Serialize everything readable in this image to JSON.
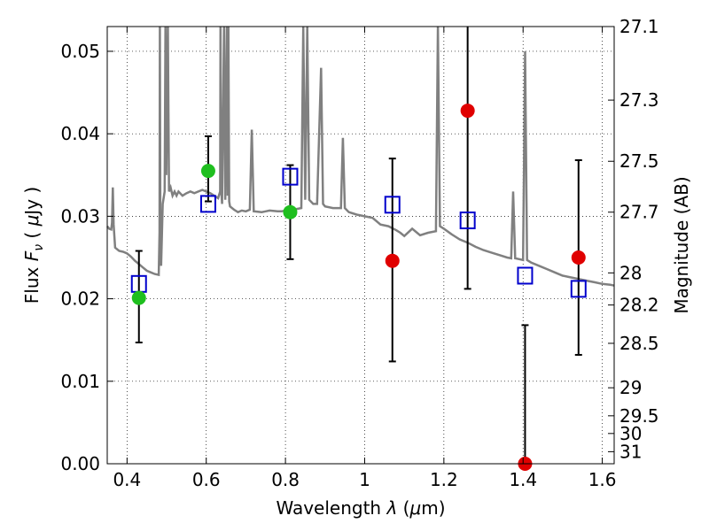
{
  "chart_data": {
    "type": "scatter",
    "xlabel_parts": [
      "Wavelength  ",
      "λ",
      " (",
      "μ",
      "m)"
    ],
    "ylabel_parts": [
      "Flux  ",
      "F",
      "ν",
      "  ( ",
      "μ",
      "Jy )"
    ],
    "y2label": "Magnitude (AB)",
    "xlim": [
      0.35,
      1.63
    ],
    "ylim": [
      0.0,
      0.053
    ],
    "x_ticks": [
      0.4,
      0.6,
      0.8,
      1.0,
      1.2,
      1.4,
      1.6
    ],
    "x_tick_labels": [
      "0.4",
      "0.6",
      "0.8",
      "1",
      "1.2",
      "1.4",
      "1.6"
    ],
    "y_ticks": [
      0.0,
      0.01,
      0.02,
      0.03,
      0.04,
      0.05
    ],
    "y_tick_labels": [
      "0.00",
      "0.01",
      "0.02",
      "0.03",
      "0.04",
      "0.05"
    ],
    "mag_ticks": [
      27.1,
      27.3,
      27.5,
      27.7,
      28,
      28.2,
      28.5,
      29,
      29.5,
      30,
      31
    ],
    "mag_tick_labels": [
      "27.1",
      "27.3",
      "27.5",
      "27.7",
      "28",
      "28.2",
      "28.5",
      "29",
      "29.5",
      "30",
      "31"
    ],
    "grid": true,
    "colors": {
      "model_line": "#808080",
      "model_flux": "#0000cc",
      "detected": "#1fbf1f",
      "low_snr": "#e00000",
      "errorbar": "#000000"
    },
    "series": [
      {
        "kind": "model_spectrum",
        "points": [
          [
            0.35,
            0.0288
          ],
          [
            0.355,
            0.0285
          ],
          [
            0.36,
            0.0284
          ],
          [
            0.362,
            0.0292
          ],
          [
            0.364,
            0.0335
          ],
          [
            0.366,
            0.029
          ],
          [
            0.37,
            0.0262
          ],
          [
            0.38,
            0.0258
          ],
          [
            0.39,
            0.0257
          ],
          [
            0.4,
            0.0255
          ],
          [
            0.41,
            0.0251
          ],
          [
            0.42,
            0.0246
          ],
          [
            0.43,
            0.0242
          ],
          [
            0.44,
            0.0238
          ],
          [
            0.45,
            0.0234
          ],
          [
            0.46,
            0.0232
          ],
          [
            0.47,
            0.023
          ],
          [
            0.48,
            0.0229
          ],
          [
            0.482,
            0.028
          ],
          [
            0.483,
            0.053
          ],
          [
            0.484,
            0.03
          ],
          [
            0.486,
            0.024
          ],
          [
            0.49,
            0.0315
          ],
          [
            0.495,
            0.033
          ],
          [
            0.497,
            0.053
          ],
          [
            0.499,
            0.035
          ],
          [
            0.503,
            0.053
          ],
          [
            0.506,
            0.033
          ],
          [
            0.51,
            0.0335
          ],
          [
            0.515,
            0.0325
          ],
          [
            0.52,
            0.033
          ],
          [
            0.525,
            0.0325
          ],
          [
            0.53,
            0.033
          ],
          [
            0.54,
            0.0325
          ],
          [
            0.55,
            0.0328
          ],
          [
            0.56,
            0.033
          ],
          [
            0.57,
            0.0328
          ],
          [
            0.58,
            0.033
          ],
          [
            0.59,
            0.0332
          ],
          [
            0.6,
            0.033
          ],
          [
            0.61,
            0.0328
          ],
          [
            0.62,
            0.0325
          ],
          [
            0.63,
            0.0322
          ],
          [
            0.635,
            0.033
          ],
          [
            0.636,
            0.053
          ],
          [
            0.638,
            0.033
          ],
          [
            0.64,
            0.0315
          ],
          [
            0.645,
            0.053
          ],
          [
            0.648,
            0.032
          ],
          [
            0.652,
            0.053
          ],
          [
            0.654,
            0.0325
          ],
          [
            0.656,
            0.053
          ],
          [
            0.658,
            0.0318
          ],
          [
            0.66,
            0.0312
          ],
          [
            0.67,
            0.0308
          ],
          [
            0.68,
            0.0305
          ],
          [
            0.69,
            0.0307
          ],
          [
            0.7,
            0.0306
          ],
          [
            0.71,
            0.0308
          ],
          [
            0.715,
            0.0405
          ],
          [
            0.72,
            0.0306
          ],
          [
            0.74,
            0.0305
          ],
          [
            0.75,
            0.0306
          ],
          [
            0.76,
            0.0307
          ],
          [
            0.78,
            0.0306
          ],
          [
            0.79,
            0.0306
          ],
          [
            0.8,
            0.0307
          ],
          [
            0.81,
            0.0308
          ],
          [
            0.82,
            0.0308
          ],
          [
            0.83,
            0.0309
          ],
          [
            0.84,
            0.031
          ],
          [
            0.845,
            0.053
          ],
          [
            0.85,
            0.032
          ],
          [
            0.855,
            0.053
          ],
          [
            0.86,
            0.032
          ],
          [
            0.87,
            0.0315
          ],
          [
            0.88,
            0.0315
          ],
          [
            0.89,
            0.048
          ],
          [
            0.895,
            0.0315
          ],
          [
            0.9,
            0.0312
          ],
          [
            0.92,
            0.031
          ],
          [
            0.94,
            0.031
          ],
          [
            0.945,
            0.0395
          ],
          [
            0.95,
            0.031
          ],
          [
            0.96,
            0.0305
          ],
          [
            0.98,
            0.0302
          ],
          [
            1.0,
            0.03
          ],
          [
            1.02,
            0.0298
          ],
          [
            1.04,
            0.029
          ],
          [
            1.06,
            0.0288
          ],
          [
            1.08,
            0.0283
          ],
          [
            1.09,
            0.028
          ],
          [
            1.1,
            0.0276
          ],
          [
            1.12,
            0.0285
          ],
          [
            1.14,
            0.0277
          ],
          [
            1.16,
            0.028
          ],
          [
            1.18,
            0.0282
          ],
          [
            1.185,
            0.053
          ],
          [
            1.19,
            0.0288
          ],
          [
            1.2,
            0.0285
          ],
          [
            1.22,
            0.0278
          ],
          [
            1.24,
            0.0272
          ],
          [
            1.26,
            0.0268
          ],
          [
            1.28,
            0.0263
          ],
          [
            1.3,
            0.0259
          ],
          [
            1.32,
            0.0256
          ],
          [
            1.34,
            0.0253
          ],
          [
            1.36,
            0.025
          ],
          [
            1.37,
            0.0249
          ],
          [
            1.375,
            0.033
          ],
          [
            1.38,
            0.0249
          ],
          [
            1.39,
            0.0248
          ],
          [
            1.4,
            0.0247
          ],
          [
            1.405,
            0.05
          ],
          [
            1.41,
            0.0247
          ],
          [
            1.42,
            0.0244
          ],
          [
            1.44,
            0.024
          ],
          [
            1.46,
            0.0236
          ],
          [
            1.48,
            0.0232
          ],
          [
            1.5,
            0.0228
          ],
          [
            1.52,
            0.0226
          ],
          [
            1.54,
            0.0224
          ],
          [
            1.56,
            0.0222
          ],
          [
            1.58,
            0.022
          ],
          [
            1.6,
            0.0218
          ],
          [
            1.62,
            0.0217
          ],
          [
            1.63,
            0.0216
          ]
        ]
      },
      {
        "kind": "model_band_flux",
        "points": [
          [
            0.43,
            0.0218
          ],
          [
            0.605,
            0.0315
          ],
          [
            0.812,
            0.0348
          ],
          [
            1.07,
            0.0314
          ],
          [
            1.26,
            0.0295
          ],
          [
            1.405,
            0.0228
          ],
          [
            1.54,
            0.0212
          ]
        ]
      },
      {
        "kind": "detected",
        "points": [
          [
            0.43,
            0.0201
          ],
          [
            0.605,
            0.0355
          ],
          [
            0.812,
            0.0305
          ]
        ]
      },
      {
        "kind": "low_snr",
        "points": [
          [
            1.07,
            0.0246
          ],
          [
            1.26,
            0.0428
          ],
          [
            1.405,
            0.0
          ],
          [
            1.54,
            0.025
          ]
        ]
      },
      {
        "kind": "errorbars",
        "points": [
          {
            "x": 0.43,
            "lo": 0.0147,
            "hi": 0.0258
          },
          {
            "x": 0.605,
            "lo": 0.0318,
            "hi": 0.0397
          },
          {
            "x": 0.812,
            "lo": 0.0248,
            "hi": 0.0362
          },
          {
            "x": 1.07,
            "lo": 0.0124,
            "hi": 0.037
          },
          {
            "x": 1.26,
            "lo": 0.0212,
            "hi": 0.053
          },
          {
            "x": 1.405,
            "lo": 0.0,
            "hi": 0.0168
          },
          {
            "x": 1.54,
            "lo": 0.0132,
            "hi": 0.0368
          }
        ]
      }
    ]
  }
}
